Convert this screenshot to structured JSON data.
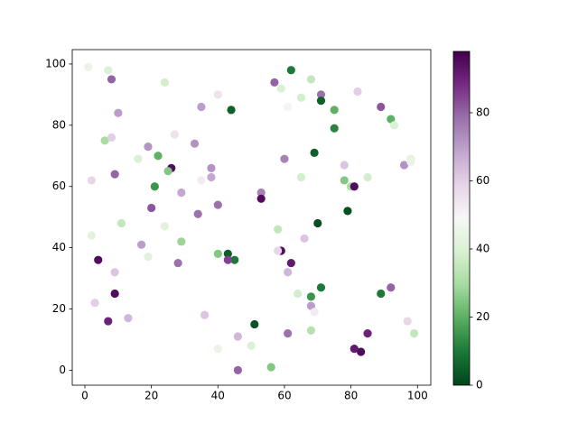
{
  "chart_data": {
    "type": "scatter",
    "cmap": "PRGn_r",
    "x": [
      1,
      7,
      8,
      24,
      62,
      57,
      68,
      59,
      82,
      71,
      65,
      71,
      40,
      61,
      35,
      44,
      75,
      89,
      92,
      93,
      10,
      6,
      8,
      27,
      19,
      33,
      75,
      69,
      60,
      16,
      22,
      26,
      25,
      38,
      38,
      35,
      9,
      2,
      65,
      78,
      96,
      98,
      98,
      78,
      80,
      81,
      85,
      21,
      29,
      53,
      53,
      40,
      34,
      20,
      11,
      24,
      70,
      79,
      58,
      2,
      66,
      17,
      59,
      58,
      29,
      19,
      40,
      43,
      45,
      43,
      4,
      62,
      28,
      61,
      9,
      64,
      68,
      71,
      89,
      92,
      9,
      3,
      68,
      69,
      36,
      13,
      7,
      97,
      51,
      99,
      85,
      61,
      68,
      46,
      50,
      40,
      81,
      83,
      56,
      46
    ],
    "y": [
      99,
      98,
      95,
      94,
      98,
      94,
      95,
      92,
      91,
      90,
      89,
      88,
      90,
      86,
      86,
      85,
      85,
      86,
      82,
      80,
      84,
      75,
      76,
      77,
      73,
      74,
      79,
      71,
      69,
      69,
      70,
      66,
      65,
      66,
      63,
      62,
      64,
      62,
      63,
      67,
      67,
      69,
      68,
      62,
      60,
      60,
      63,
      60,
      58,
      58,
      56,
      54,
      51,
      53,
      48,
      47,
      48,
      52,
      46,
      44,
      43,
      41,
      39,
      39,
      42,
      37,
      38,
      38,
      36,
      36,
      36,
      35,
      35,
      32,
      32,
      25,
      24,
      27,
      25,
      27,
      25,
      22,
      21,
      19,
      18,
      17,
      16,
      16,
      15,
      12,
      12,
      12,
      13,
      11,
      8,
      7,
      7,
      6,
      1,
      0
    ],
    "c": [
      45,
      40,
      80,
      38,
      10,
      80,
      35,
      40,
      60,
      78,
      38,
      5,
      55,
      50,
      70,
      5,
      20,
      82,
      20,
      40,
      70,
      30,
      60,
      55,
      72,
      72,
      12,
      5,
      75,
      40,
      20,
      95,
      25,
      72,
      68,
      52,
      80,
      58,
      38,
      62,
      72,
      42,
      45,
      25,
      30,
      95,
      38,
      15,
      68,
      75,
      95,
      78,
      78,
      82,
      35,
      42,
      2,
      2,
      35,
      42,
      62,
      70,
      95,
      58,
      28,
      42,
      25,
      5,
      10,
      85,
      95,
      92,
      78,
      65,
      62,
      38,
      15,
      10,
      10,
      80,
      95,
      60,
      70,
      52,
      62,
      65,
      90,
      58,
      3,
      35,
      90,
      78,
      32,
      65,
      40,
      45,
      92,
      95,
      25,
      80
    ],
    "xlim": [
      -3.8,
      104
    ],
    "ylim": [
      -4.9,
      104.7
    ],
    "xticks": [
      0,
      20,
      40,
      60,
      80,
      100
    ],
    "yticks": [
      0,
      20,
      40,
      60,
      80,
      100
    ],
    "clim": [
      0,
      98
    ],
    "cticks": [
      0,
      20,
      40,
      60,
      80
    ]
  }
}
